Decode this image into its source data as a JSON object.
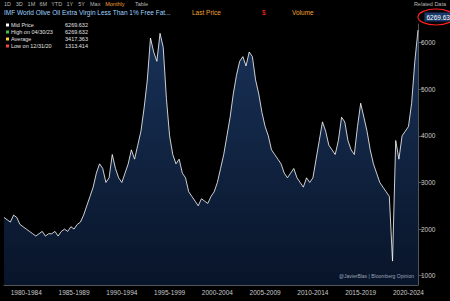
{
  "chart_data": {
    "type": "line",
    "title": "IMF World Olive Oil Extra Virgin Less Than 1% Free Fat...",
    "categories": [
      null,
      null,
      null,
      null,
      null,
      null,
      null,
      "1980-1984",
      null,
      null,
      null,
      null,
      null,
      null,
      null,
      null,
      null,
      null,
      null,
      null,
      null,
      null,
      "1985-1989",
      null,
      null,
      null,
      null,
      null,
      null,
      null,
      null,
      null,
      null,
      null,
      null,
      null,
      null,
      "1990-1994",
      null,
      null,
      null,
      null,
      null,
      null,
      null,
      null,
      null,
      null,
      null,
      null,
      null,
      null,
      "1995-1999",
      null,
      null,
      null,
      null,
      null,
      null,
      null,
      null,
      null,
      null,
      null,
      null,
      null,
      null,
      "2000-2004",
      null,
      null,
      null,
      null,
      null,
      null,
      null,
      null,
      null,
      null,
      null,
      null,
      null,
      null,
      "2005-2009",
      null,
      null,
      null,
      null,
      null,
      null,
      null,
      null,
      null,
      null,
      null,
      null,
      null,
      null,
      "2010-2014",
      null,
      null,
      null,
      null,
      null,
      null,
      null,
      null,
      null,
      null,
      null,
      null,
      null,
      null,
      "2015-2019",
      null,
      null,
      null,
      null,
      null,
      null,
      null,
      null,
      null,
      null,
      null,
      null,
      null,
      null,
      "2020-2024",
      null,
      null,
      null
    ],
    "values": [
      2250,
      2200,
      2150,
      2300,
      2250,
      2100,
      2050,
      2000,
      1950,
      1900,
      1850,
      1900,
      1950,
      1850,
      1900,
      1900,
      1950,
      1850,
      1950,
      2000,
      1950,
      2050,
      2000,
      2100,
      2150,
      2300,
      2500,
      2700,
      2900,
      3200,
      3400,
      3300,
      3000,
      3100,
      3600,
      3300,
      3100,
      3000,
      3200,
      3400,
      3700,
      3500,
      3800,
      4100,
      4600,
      5200,
      6100,
      5800,
      5600,
      6200,
      5900,
      4800,
      4000,
      3600,
      3400,
      3500,
      3200,
      3100,
      2800,
      2700,
      2600,
      2500,
      2650,
      2600,
      2550,
      2700,
      2800,
      3000,
      3300,
      3600,
      4000,
      4400,
      4900,
      5300,
      5600,
      5700,
      5500,
      5800,
      5700,
      5200,
      4900,
      4500,
      4200,
      4000,
      3700,
      3600,
      3500,
      3400,
      3200,
      3100,
      3200,
      3300,
      3100,
      3000,
      2900,
      3100,
      3000,
      3100,
      3500,
      3900,
      4300,
      4100,
      3800,
      3700,
      3600,
      3900,
      4400,
      4300,
      3900,
      3700,
      3600,
      4200,
      4700,
      4400,
      4100,
      3700,
      3400,
      3200,
      3000,
      2900,
      2800,
      2700,
      1313.414,
      3900,
      3500,
      4000,
      4100,
      4200,
      4700,
      5600,
      6269.632
    ],
    "color": "#ffffff",
    "ylim": [
      800,
      6400
    ],
    "yticks": [
      1000,
      2000,
      3000,
      4000,
      5000,
      6000
    ],
    "grid": false,
    "annotations": {
      "toolbar": [
        "1D",
        "3D",
        "1M",
        "6M",
        "YTD",
        "1Y",
        "5Y",
        "Max",
        "Monthly",
        "Table"
      ],
      "header": [
        "Last Price",
        "$",
        "Volume",
        "Related Data"
      ],
      "stats": [
        {
          "label": "Mid Price",
          "value": 6269.632
        },
        {
          "label": "High on 04/30/23",
          "value": 6269.632
        },
        {
          "label": "Average",
          "value": 3417.363
        },
        {
          "label": "Low on 12/31/20",
          "value": 1313.414
        }
      ],
      "last_price_label": 6269.632,
      "credit": "@JavierBlas | Bloomberg Opinion"
    }
  }
}
